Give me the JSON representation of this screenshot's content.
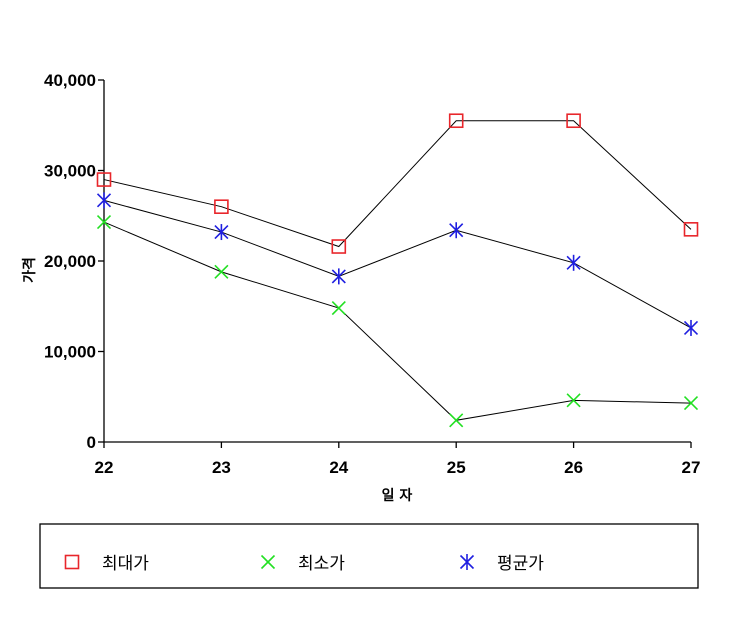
{
  "chart_data": {
    "type": "line",
    "x": [
      22,
      23,
      24,
      25,
      26,
      27
    ],
    "x_tick_labels": [
      "22",
      "23",
      "24",
      "25",
      "26",
      "27"
    ],
    "y_tick_labels": [
      "0",
      "10,000",
      "20,000",
      "30,000",
      "40,000"
    ],
    "y_ticks": [
      0,
      10000,
      20000,
      30000,
      40000
    ],
    "ylim": [
      0,
      40000
    ],
    "xlabel": "일 자",
    "ylabel": "가격",
    "grid": false,
    "legend_position": "bottom",
    "series": [
      {
        "name": "최대가",
        "marker": "square",
        "color": "#e8262b",
        "values": [
          29000,
          26000,
          21600,
          35500,
          35500,
          23500
        ]
      },
      {
        "name": "최소가",
        "marker": "x",
        "color": "#22e022",
        "values": [
          24300,
          18800,
          14800,
          2400,
          4600,
          4300
        ]
      },
      {
        "name": "평균가",
        "marker": "asterisk",
        "color": "#1f1fe0",
        "values": [
          26700,
          23200,
          18300,
          23400,
          19800,
          12600
        ]
      }
    ]
  }
}
